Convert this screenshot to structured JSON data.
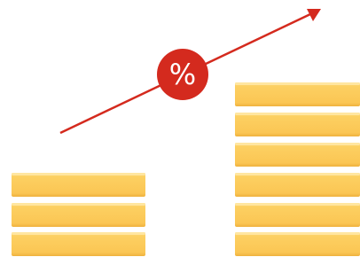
{
  "badge": {
    "label": "%"
  }
}
